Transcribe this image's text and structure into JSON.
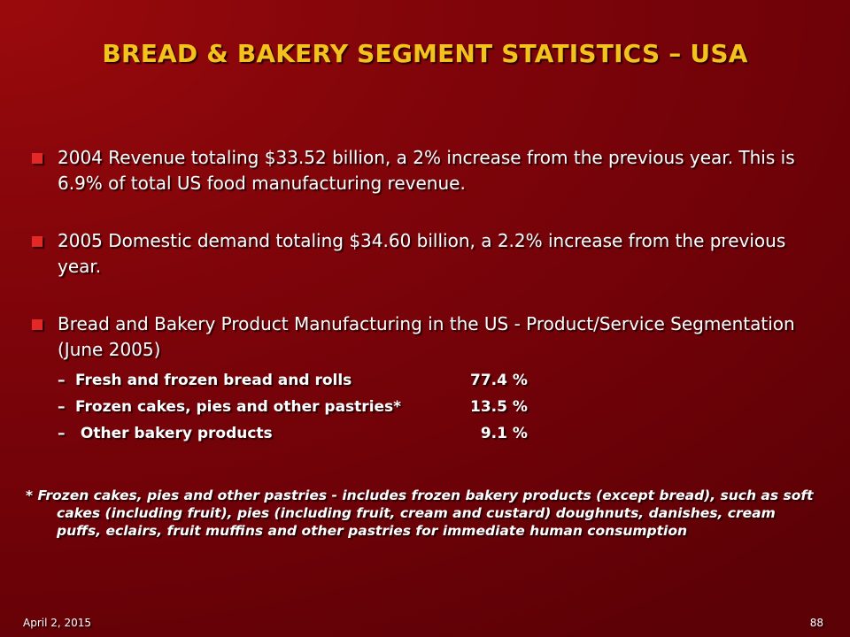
{
  "slide": {
    "title": "BREAD & BAKERY SEGMENT STATISTICS – USA",
    "bullets": [
      {
        "text": "2004 Revenue totaling $33.52 billion, a 2% increase from the previous year. This is 6.9% of total US food manufacturing revenue."
      },
      {
        "text": "2005 Domestic demand totaling $34.60 billion, a 2.2% increase from the previous year."
      },
      {
        "text": "Bread and Bakery Product Manufacturing in the US - Product/Service Segmentation (June 2005)",
        "subitems": [
          {
            "dash": "–",
            "label": "Fresh and frozen bread and rolls",
            "value": "77.4 %"
          },
          {
            "dash": "–",
            "label": "Frozen cakes, pies and other pastries*",
            "value": "13.5 %"
          },
          {
            "dash": "–",
            "label": " Other bakery products",
            "value": "  9.1 %"
          }
        ]
      }
    ],
    "footnote": "* Frozen cakes, pies and other pastries -  includes frozen bakery products (except bread), such as soft cakes (including fruit), pies (including fruit, cream and custard) doughnuts, danishes, cream puffs, eclairs, fruit muffins and other pastries for immediate human consumption",
    "date": "April 2, 2015",
    "page_number": "88"
  },
  "colors": {
    "background": "#7a0409",
    "title": "#f3c21c",
    "bullet_marker": "#e42828",
    "text": "#ffffff"
  }
}
